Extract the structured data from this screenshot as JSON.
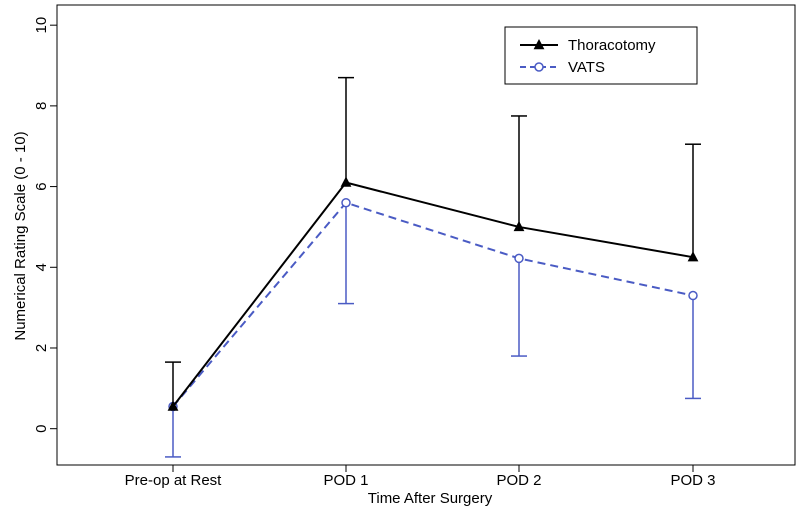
{
  "chart_data": {
    "type": "line",
    "title": "",
    "xlabel": "Time After Surgery",
    "ylabel": "Numerical Rating Scale (0 - 10)",
    "categories": [
      "Pre-op at Rest",
      "POD 1",
      "POD 2",
      "POD 3"
    ],
    "ylim": [
      -0.9,
      10.5
    ],
    "yticks": [
      0,
      2,
      4,
      6,
      8,
      10
    ],
    "grid": false,
    "legend_position": "top-right",
    "series": [
      {
        "name": "Thoracotomy",
        "color": "#000000",
        "line_style": "solid",
        "marker": "filled-triangle",
        "values": [
          0.55,
          6.1,
          5.0,
          4.25
        ],
        "error_upper": [
          1.65,
          8.7,
          7.75,
          7.05
        ],
        "error_lower": [
          null,
          null,
          null,
          null
        ]
      },
      {
        "name": "VATS",
        "color": "#4a5bc4",
        "line_style": "dashed",
        "marker": "open-circle",
        "values": [
          0.55,
          5.6,
          4.22,
          3.3
        ],
        "error_upper": [
          null,
          null,
          null,
          null
        ],
        "error_lower": [
          -0.7,
          3.1,
          1.8,
          0.75
        ]
      }
    ]
  }
}
